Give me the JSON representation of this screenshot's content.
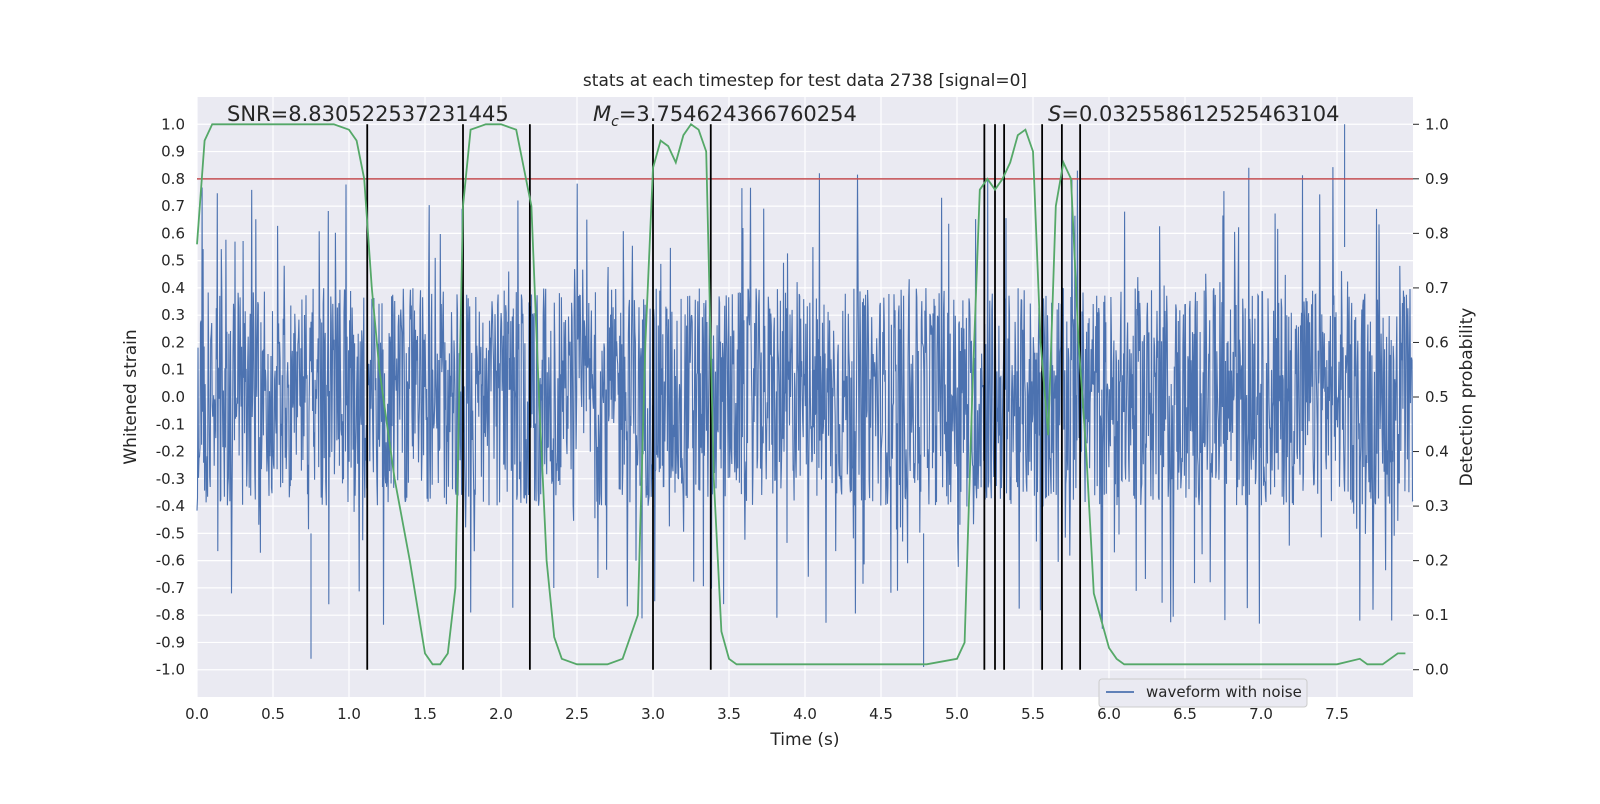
{
  "chart_data": {
    "type": "line",
    "title": "stats at each timestep for test data 2738 [signal=0]",
    "xlabel": "Time (s)",
    "ylabel": "Whitened strain",
    "y2label": "Detection probability",
    "xlim": [
      0,
      8
    ],
    "ylim": [
      -1.1,
      1.1
    ],
    "y2lim": [
      -0.05,
      1.05
    ],
    "x_ticks": [
      "0.0",
      "0.5",
      "1.0",
      "1.5",
      "2.0",
      "2.5",
      "3.0",
      "3.5",
      "4.0",
      "4.5",
      "5.0",
      "5.5",
      "6.0",
      "6.5",
      "7.0",
      "7.5"
    ],
    "y_ticks": [
      "-1.0",
      "-0.9",
      "-0.8",
      "-0.7",
      "-0.6",
      "-0.5",
      "-0.4",
      "-0.3",
      "-0.2",
      "-0.1",
      "0.0",
      "0.1",
      "0.2",
      "0.3",
      "0.4",
      "0.5",
      "0.6",
      "0.7",
      "0.8",
      "0.9",
      "1.0"
    ],
    "y2_ticks": [
      "0.0",
      "0.1",
      "0.2",
      "0.3",
      "0.4",
      "0.5",
      "0.6",
      "0.7",
      "0.8",
      "0.9",
      "1.0"
    ],
    "grid": true,
    "legend_position": "lower-right",
    "annotations": {
      "snr": "SNR=8.830522537231445",
      "mc_symbol": "M",
      "mc_sub": "c",
      "mc_value": "=3.754624366760254",
      "s_symbol": "S",
      "s_value": "=0.032558612525463104"
    },
    "series": [
      {
        "name": "waveform with noise",
        "axis": "left",
        "color": "#4c72b0",
        "description_values": "dense noise, bulk within ±0.35, spikes up to 1.0 and down to -0.99"
      },
      {
        "axis": "right",
        "color": "#55a868",
        "x": [
          0,
          0.05,
          0.1,
          0.2,
          0.3,
          0.5,
          0.7,
          0.9,
          1.0,
          1.05,
          1.1,
          1.15,
          1.2,
          1.3,
          1.4,
          1.5,
          1.55,
          1.6,
          1.65,
          1.7,
          1.75,
          1.8,
          1.9,
          2.0,
          2.1,
          2.2,
          2.25,
          2.3,
          2.35,
          2.4,
          2.5,
          2.6,
          2.7,
          2.8,
          2.9,
          2.95,
          3.0,
          3.05,
          3.1,
          3.15,
          3.2,
          3.25,
          3.3,
          3.35,
          3.4,
          3.45,
          3.5,
          3.55,
          3.6,
          3.7,
          3.8,
          4.0,
          4.2,
          4.3,
          4.4,
          4.6,
          4.8,
          5.0,
          5.05,
          5.1,
          5.15,
          5.2,
          5.25,
          5.3,
          5.35,
          5.4,
          5.45,
          5.5,
          5.55,
          5.6,
          5.65,
          5.7,
          5.75,
          5.8,
          5.85,
          5.9,
          5.95,
          6.0,
          6.05,
          6.1,
          6.15,
          6.2,
          6.3,
          6.5,
          6.7,
          6.9,
          7.1,
          7.3,
          7.5,
          7.65,
          7.7,
          7.8,
          7.9,
          7.95
        ],
        "values": [
          0.78,
          0.97,
          1.0,
          1.0,
          1.0,
          1.0,
          1.0,
          1.0,
          0.99,
          0.97,
          0.9,
          0.7,
          0.55,
          0.35,
          0.2,
          0.03,
          0.01,
          0.01,
          0.03,
          0.15,
          0.85,
          0.99,
          1.0,
          1.0,
          0.99,
          0.85,
          0.5,
          0.2,
          0.06,
          0.02,
          0.01,
          0.01,
          0.01,
          0.02,
          0.1,
          0.6,
          0.92,
          0.97,
          0.96,
          0.93,
          0.98,
          1.0,
          0.99,
          0.95,
          0.35,
          0.07,
          0.02,
          0.01,
          0.01,
          0.01,
          0.01,
          0.01,
          0.01,
          0.01,
          0.01,
          0.01,
          0.01,
          0.02,
          0.05,
          0.5,
          0.88,
          0.9,
          0.88,
          0.9,
          0.93,
          0.98,
          0.99,
          0.95,
          0.6,
          0.43,
          0.85,
          0.93,
          0.9,
          0.6,
          0.4,
          0.14,
          0.09,
          0.04,
          0.02,
          0.01,
          0.01,
          0.01,
          0.01,
          0.01,
          0.01,
          0.01,
          0.01,
          0.01,
          0.01,
          0.02,
          0.01,
          0.01,
          0.03,
          0.03
        ]
      }
    ],
    "threshold": {
      "axis": "right",
      "value": 0.9,
      "color": "#c44e52"
    },
    "vertical_lines": [
      1.12,
      1.75,
      2.19,
      3.0,
      3.38,
      5.18,
      5.25,
      5.31,
      5.56,
      5.69,
      5.81
    ],
    "vertical_line_range": [
      -1.0,
      1.0
    ],
    "colors": {
      "background": "#eaeaf2",
      "grid": "#ffffff",
      "vline": "#000000"
    }
  }
}
